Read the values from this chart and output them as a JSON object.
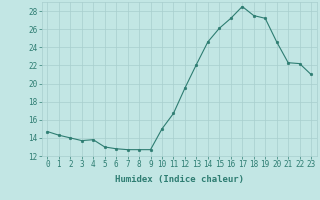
{
  "x": [
    0,
    1,
    2,
    3,
    4,
    5,
    6,
    7,
    8,
    9,
    10,
    11,
    12,
    13,
    14,
    15,
    16,
    17,
    18,
    19,
    20,
    21,
    22,
    23
  ],
  "y": [
    14.7,
    14.3,
    14.0,
    13.7,
    13.8,
    13.0,
    12.8,
    12.7,
    12.7,
    12.7,
    15.0,
    16.7,
    19.5,
    22.1,
    24.6,
    26.1,
    27.2,
    28.5,
    27.5,
    27.2,
    24.6,
    22.3,
    22.2,
    21.0
  ],
  "line_color": "#2e7d72",
  "marker_color": "#2e7d72",
  "bg_color": "#c2e6e4",
  "grid_color": "#a8cece",
  "tick_color": "#2e7d72",
  "xlabel": "Humidex (Indice chaleur)",
  "ylim": [
    12,
    29
  ],
  "xlim": [
    -0.5,
    23.5
  ],
  "yticks": [
    12,
    14,
    16,
    18,
    20,
    22,
    24,
    26,
    28
  ],
  "xticks": [
    0,
    1,
    2,
    3,
    4,
    5,
    6,
    7,
    8,
    9,
    10,
    11,
    12,
    13,
    14,
    15,
    16,
    17,
    18,
    19,
    20,
    21,
    22,
    23
  ],
  "label_fontsize": 6.5,
  "tick_fontsize": 5.5,
  "line_width": 0.8,
  "marker_size": 2.0
}
